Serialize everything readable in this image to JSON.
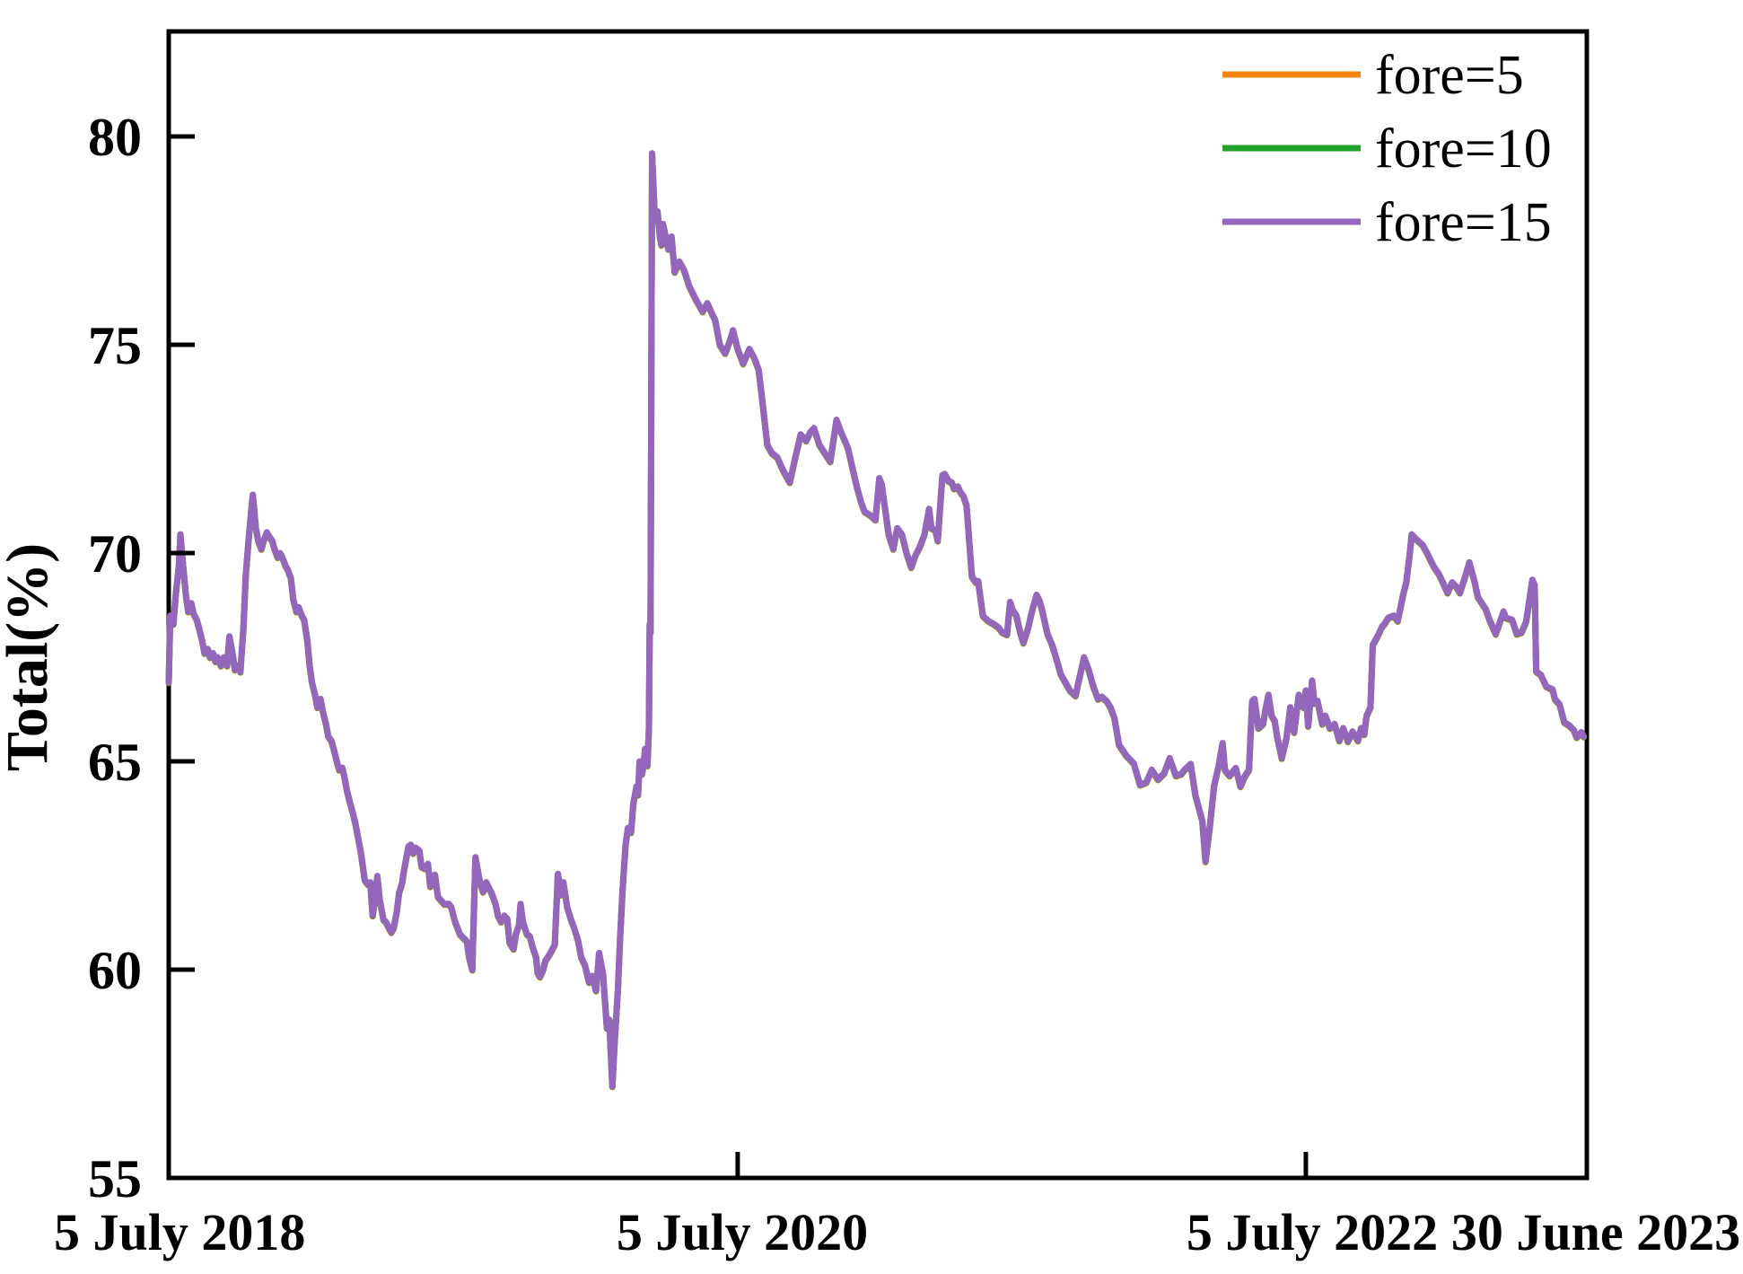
{
  "axes": {
    "y_title": "Total(%)",
    "y_tick_labels": [
      "55",
      "60",
      "65",
      "70",
      "75",
      "80"
    ],
    "x_ticks": [
      {
        "label": "5 July 2018",
        "day": 0,
        "tick_mark": false,
        "anchor": "start"
      },
      {
        "label": "5 July 2020",
        "day": 731,
        "tick_mark": true,
        "anchor": "middle"
      },
      {
        "label": "5 July 2022",
        "day": 1461,
        "tick_mark": true,
        "anchor": "middle"
      },
      {
        "label": "30 June 2023",
        "day": 1822,
        "tick_mark": false,
        "anchor": "middle"
      }
    ]
  },
  "legend": {
    "entries": [
      {
        "label": "fore=5",
        "color": "#f5820b"
      },
      {
        "label": "fore=10",
        "color": "#21a32b"
      },
      {
        "label": "fore=15",
        "color": "#9467bd"
      }
    ]
  },
  "chart_data": {
    "type": "line",
    "title": "",
    "xlabel": "",
    "ylabel": "Total(%)",
    "ylim": [
      55,
      80
    ],
    "xlim": [
      0,
      1822
    ],
    "x_unit": "days since 5 July 2018",
    "grid": false,
    "legend_position": "upper right, no frame",
    "y_ticks": [
      55,
      60,
      65,
      70,
      75,
      80
    ],
    "x_tick_labels": [
      "5 July 2018",
      "5 July 2020",
      "5 July 2022",
      "30 June 2023"
    ],
    "series": [
      {
        "name": "fore=5",
        "color": "#f5820b"
      },
      {
        "name": "fore=10",
        "color": "#21a32b"
      },
      {
        "name": "fore=15",
        "color": "#9467bd"
      }
    ],
    "note": "The three series overlap almost exactly; fore=15 is drawn on top so only the purple curve is visible (tiny orange slivers at sharp corners). All series share the points array below: [day, total_percent].",
    "points": [
      [
        0,
        66.9
      ],
      [
        2,
        68.5
      ],
      [
        6,
        68.3
      ],
      [
        9,
        69.0
      ],
      [
        13,
        69.7
      ],
      [
        15,
        70.45
      ],
      [
        18,
        69.8
      ],
      [
        22,
        69.0
      ],
      [
        25,
        68.6
      ],
      [
        29,
        68.8
      ],
      [
        32,
        68.55
      ],
      [
        36,
        68.4
      ],
      [
        39,
        68.2
      ],
      [
        43,
        67.9
      ],
      [
        46,
        67.6
      ],
      [
        50,
        67.7
      ],
      [
        53,
        67.5
      ],
      [
        57,
        67.6
      ],
      [
        60,
        67.4
      ],
      [
        63,
        67.5
      ],
      [
        67,
        67.3
      ],
      [
        71,
        67.5
      ],
      [
        75,
        67.3
      ],
      [
        78,
        68.0
      ],
      [
        82,
        67.6
      ],
      [
        85,
        67.2
      ],
      [
        89,
        67.3
      ],
      [
        92,
        67.15
      ],
      [
        96,
        68.2
      ],
      [
        99,
        69.5
      ],
      [
        103,
        70.4
      ],
      [
        106,
        71.0
      ],
      [
        108,
        71.4
      ],
      [
        112,
        70.6
      ],
      [
        115,
        70.3
      ],
      [
        119,
        70.1
      ],
      [
        122,
        70.3
      ],
      [
        126,
        70.5
      ],
      [
        129,
        70.4
      ],
      [
        133,
        70.3
      ],
      [
        136,
        70.1
      ],
      [
        140,
        69.9
      ],
      [
        143,
        70.0
      ],
      [
        146,
        69.9
      ],
      [
        150,
        69.7
      ],
      [
        153,
        69.6
      ],
      [
        157,
        69.4
      ],
      [
        160,
        68.9
      ],
      [
        164,
        68.6
      ],
      [
        167,
        68.7
      ],
      [
        171,
        68.5
      ],
      [
        174,
        68.4
      ],
      [
        178,
        67.9
      ],
      [
        181,
        67.3
      ],
      [
        184,
        66.9
      ],
      [
        188,
        66.6
      ],
      [
        191,
        66.3
      ],
      [
        195,
        66.5
      ],
      [
        198,
        66.2
      ],
      [
        202,
        65.9
      ],
      [
        205,
        65.6
      ],
      [
        209,
        65.5
      ],
      [
        212,
        65.3
      ],
      [
        216,
        65.0
      ],
      [
        219,
        64.8
      ],
      [
        223,
        64.85
      ],
      [
        226,
        64.6
      ],
      [
        229,
        64.3
      ],
      [
        233,
        64.0
      ],
      [
        236,
        63.8
      ],
      [
        240,
        63.5
      ],
      [
        243,
        63.2
      ],
      [
        247,
        62.8
      ],
      [
        250,
        62.4
      ],
      [
        252,
        62.15
      ],
      [
        256,
        62.05
      ],
      [
        259,
        62.1
      ],
      [
        262,
        61.3
      ],
      [
        265,
        61.7
      ],
      [
        268,
        62.25
      ],
      [
        271,
        61.7
      ],
      [
        276,
        61.2
      ],
      [
        279,
        61.15
      ],
      [
        283,
        61.0
      ],
      [
        286,
        60.9
      ],
      [
        289,
        61.0
      ],
      [
        293,
        61.4
      ],
      [
        296,
        61.85
      ],
      [
        300,
        62.1
      ],
      [
        302,
        62.36
      ],
      [
        308,
        62.96
      ],
      [
        311,
        63.0
      ],
      [
        314,
        62.8
      ],
      [
        317,
        62.93
      ],
      [
        322,
        62.86
      ],
      [
        325,
        62.47
      ],
      [
        329,
        62.43
      ],
      [
        333,
        62.54
      ],
      [
        336,
        62.0
      ],
      [
        339,
        62.17
      ],
      [
        342,
        62.28
      ],
      [
        346,
        61.75
      ],
      [
        351,
        61.64
      ],
      [
        354,
        61.58
      ],
      [
        360,
        61.58
      ],
      [
        363,
        61.5
      ],
      [
        368,
        61.15
      ],
      [
        374,
        60.86
      ],
      [
        377,
        60.8
      ],
      [
        383,
        60.68
      ],
      [
        386,
        60.3
      ],
      [
        390,
        60.0
      ],
      [
        394,
        62.7
      ],
      [
        398,
        62.3
      ],
      [
        400,
        62.1
      ],
      [
        404,
        61.87
      ],
      [
        408,
        62.1
      ],
      [
        412,
        61.94
      ],
      [
        415,
        61.83
      ],
      [
        420,
        61.58
      ],
      [
        423,
        61.3
      ],
      [
        427,
        61.15
      ],
      [
        431,
        61.3
      ],
      [
        435,
        61.22
      ],
      [
        438,
        60.65
      ],
      [
        443,
        60.5
      ],
      [
        446,
        60.86
      ],
      [
        450,
        61.07
      ],
      [
        452,
        61.58
      ],
      [
        455,
        61.15
      ],
      [
        460,
        60.86
      ],
      [
        464,
        60.8
      ],
      [
        467,
        60.58
      ],
      [
        472,
        60.3
      ],
      [
        474,
        59.93
      ],
      [
        477,
        59.83
      ],
      [
        481,
        60.0
      ],
      [
        484,
        60.22
      ],
      [
        489,
        60.36
      ],
      [
        496,
        60.6
      ],
      [
        500,
        62.3
      ],
      [
        504,
        61.8
      ],
      [
        507,
        62.1
      ],
      [
        512,
        61.5
      ],
      [
        517,
        61.2
      ],
      [
        521,
        61.0
      ],
      [
        526,
        60.7
      ],
      [
        530,
        60.3
      ],
      [
        535,
        60.1
      ],
      [
        540,
        59.7
      ],
      [
        544,
        59.85
      ],
      [
        549,
        59.5
      ],
      [
        553,
        60.4
      ],
      [
        558,
        59.9
      ],
      [
        563,
        58.6
      ],
      [
        566,
        58.8
      ],
      [
        570,
        57.2
      ],
      [
        573,
        58.3
      ],
      [
        577,
        59.5
      ],
      [
        580,
        60.8
      ],
      [
        583,
        61.9
      ],
      [
        587,
        63.0
      ],
      [
        590,
        63.4
      ],
      [
        594,
        63.3
      ],
      [
        597,
        64.0
      ],
      [
        601,
        64.4
      ],
      [
        603,
        64.2
      ],
      [
        605,
        65.0
      ],
      [
        608,
        64.7
      ],
      [
        610,
        64.9
      ],
      [
        612,
        65.3
      ],
      [
        615,
        64.9
      ],
      [
        617,
        65.8
      ],
      [
        618,
        68.3
      ],
      [
        619,
        68.1
      ],
      [
        620,
        74.0
      ],
      [
        621,
        79.6
      ],
      [
        624,
        78.3
      ],
      [
        626,
        78.0
      ],
      [
        628,
        78.2
      ],
      [
        631,
        77.6
      ],
      [
        633,
        77.4
      ],
      [
        635,
        77.9
      ],
      [
        642,
        77.3
      ],
      [
        646,
        77.6
      ],
      [
        650,
        76.75
      ],
      [
        656,
        77.0
      ],
      [
        662,
        76.8
      ],
      [
        669,
        76.4
      ],
      [
        677,
        76.1
      ],
      [
        686,
        75.8
      ],
      [
        692,
        76.0
      ],
      [
        698,
        75.75
      ],
      [
        702,
        75.6
      ],
      [
        708,
        75.0
      ],
      [
        715,
        74.8
      ],
      [
        721,
        75.1
      ],
      [
        725,
        75.35
      ],
      [
        731,
        74.9
      ],
      [
        738,
        74.55
      ],
      [
        746,
        74.9
      ],
      [
        752,
        74.7
      ],
      [
        758,
        74.4
      ],
      [
        763,
        73.6
      ],
      [
        769,
        72.6
      ],
      [
        775,
        72.4
      ],
      [
        782,
        72.3
      ],
      [
        789,
        72.0
      ],
      [
        798,
        71.7
      ],
      [
        805,
        72.3
      ],
      [
        812,
        72.85
      ],
      [
        819,
        72.7
      ],
      [
        824,
        72.9
      ],
      [
        829,
        73.0
      ],
      [
        836,
        72.6
      ],
      [
        843,
        72.4
      ],
      [
        850,
        72.2
      ],
      [
        858,
        73.2
      ],
      [
        864,
        72.9
      ],
      [
        871,
        72.6
      ],
      [
        873,
        72.5
      ],
      [
        879,
        72.0
      ],
      [
        884,
        71.6
      ],
      [
        890,
        71.2
      ],
      [
        894,
        71.0
      ],
      [
        902,
        70.9
      ],
      [
        908,
        70.8
      ],
      [
        913,
        71.8
      ],
      [
        916,
        71.66
      ],
      [
        925,
        70.45
      ],
      [
        931,
        70.1
      ],
      [
        936,
        70.6
      ],
      [
        942,
        70.45
      ],
      [
        948,
        70.0
      ],
      [
        954,
        69.66
      ],
      [
        959,
        69.93
      ],
      [
        965,
        70.15
      ],
      [
        971,
        70.45
      ],
      [
        977,
        71.06
      ],
      [
        980,
        70.6
      ],
      [
        985,
        70.55
      ],
      [
        988,
        70.3
      ],
      [
        994,
        71.87
      ],
      [
        997,
        71.9
      ],
      [
        1002,
        71.73
      ],
      [
        1006,
        71.7
      ],
      [
        1009,
        71.55
      ],
      [
        1014,
        71.6
      ],
      [
        1017,
        71.47
      ],
      [
        1021,
        71.37
      ],
      [
        1025,
        71.15
      ],
      [
        1032,
        69.44
      ],
      [
        1037,
        69.3
      ],
      [
        1040,
        69.33
      ],
      [
        1046,
        68.5
      ],
      [
        1049,
        68.44
      ],
      [
        1054,
        68.36
      ],
      [
        1060,
        68.3
      ],
      [
        1066,
        68.22
      ],
      [
        1071,
        68.1
      ],
      [
        1077,
        68.05
      ],
      [
        1081,
        68.83
      ],
      [
        1084,
        68.65
      ],
      [
        1089,
        68.5
      ],
      [
        1094,
        68.1
      ],
      [
        1098,
        67.85
      ],
      [
        1104,
        68.2
      ],
      [
        1109,
        68.6
      ],
      [
        1115,
        69.0
      ],
      [
        1119,
        68.85
      ],
      [
        1123,
        68.57
      ],
      [
        1129,
        68.07
      ],
      [
        1135,
        67.8
      ],
      [
        1140,
        67.5
      ],
      [
        1146,
        67.1
      ],
      [
        1152,
        66.9
      ],
      [
        1158,
        66.7
      ],
      [
        1165,
        66.58
      ],
      [
        1170,
        67.0
      ],
      [
        1176,
        67.5
      ],
      [
        1182,
        67.2
      ],
      [
        1188,
        66.8
      ],
      [
        1194,
        66.5
      ],
      [
        1199,
        66.55
      ],
      [
        1205,
        66.45
      ],
      [
        1210,
        66.3
      ],
      [
        1215,
        66.05
      ],
      [
        1221,
        65.4
      ],
      [
        1230,
        65.15
      ],
      [
        1240,
        64.95
      ],
      [
        1248,
        64.44
      ],
      [
        1256,
        64.5
      ],
      [
        1263,
        64.8
      ],
      [
        1271,
        64.57
      ],
      [
        1279,
        64.72
      ],
      [
        1286,
        65.08
      ],
      [
        1294,
        64.66
      ],
      [
        1301,
        64.7
      ],
      [
        1305,
        64.8
      ],
      [
        1313,
        64.94
      ],
      [
        1319,
        64.2
      ],
      [
        1328,
        63.58
      ],
      [
        1332,
        62.6
      ],
      [
        1338,
        63.5
      ],
      [
        1343,
        64.4
      ],
      [
        1349,
        64.9
      ],
      [
        1354,
        65.44
      ],
      [
        1357,
        64.8
      ],
      [
        1363,
        64.66
      ],
      [
        1371,
        64.84
      ],
      [
        1377,
        64.4
      ],
      [
        1383,
        64.66
      ],
      [
        1388,
        64.8
      ],
      [
        1392,
        66.45
      ],
      [
        1395,
        66.5
      ],
      [
        1400,
        65.8
      ],
      [
        1406,
        65.9
      ],
      [
        1409,
        66.24
      ],
      [
        1413,
        66.6
      ],
      [
        1417,
        66.1
      ],
      [
        1421,
        65.97
      ],
      [
        1424,
        65.6
      ],
      [
        1430,
        65.08
      ],
      [
        1436,
        65.56
      ],
      [
        1441,
        66.3
      ],
      [
        1446,
        65.7
      ],
      [
        1452,
        66.6
      ],
      [
        1458,
        66.3
      ],
      [
        1461,
        66.7
      ],
      [
        1464,
        65.85
      ],
      [
        1469,
        66.94
      ],
      [
        1472,
        66.4
      ],
      [
        1476,
        66.45
      ],
      [
        1482,
        65.9
      ],
      [
        1486,
        66.1
      ],
      [
        1492,
        65.8
      ],
      [
        1498,
        65.9
      ],
      [
        1504,
        65.5
      ],
      [
        1509,
        65.8
      ],
      [
        1515,
        65.48
      ],
      [
        1521,
        65.72
      ],
      [
        1528,
        65.5
      ],
      [
        1532,
        65.8
      ],
      [
        1536,
        65.65
      ],
      [
        1539,
        66.1
      ],
      [
        1544,
        66.3
      ],
      [
        1547,
        67.8
      ],
      [
        1553,
        68.0
      ],
      [
        1559,
        68.24
      ],
      [
        1562,
        68.3
      ],
      [
        1567,
        68.45
      ],
      [
        1574,
        68.5
      ],
      [
        1579,
        68.37
      ],
      [
        1586,
        69.0
      ],
      [
        1590,
        69.3
      ],
      [
        1594,
        69.9
      ],
      [
        1597,
        70.45
      ],
      [
        1602,
        70.35
      ],
      [
        1605,
        70.3
      ],
      [
        1611,
        70.2
      ],
      [
        1617,
        70.0
      ],
      [
        1622,
        69.8
      ],
      [
        1626,
        69.66
      ],
      [
        1632,
        69.5
      ],
      [
        1637,
        69.3
      ],
      [
        1643,
        69.05
      ],
      [
        1649,
        69.3
      ],
      [
        1654,
        69.2
      ],
      [
        1659,
        69.05
      ],
      [
        1665,
        69.4
      ],
      [
        1671,
        69.78
      ],
      [
        1678,
        69.3
      ],
      [
        1682,
        68.95
      ],
      [
        1692,
        68.66
      ],
      [
        1697,
        68.4
      ],
      [
        1705,
        68.06
      ],
      [
        1715,
        68.6
      ],
      [
        1718,
        68.45
      ],
      [
        1726,
        68.4
      ],
      [
        1732,
        68.06
      ],
      [
        1738,
        68.1
      ],
      [
        1744,
        68.36
      ],
      [
        1752,
        69.36
      ],
      [
        1755,
        69.23
      ],
      [
        1757,
        67.16
      ],
      [
        1763,
        67.08
      ],
      [
        1770,
        66.8
      ],
      [
        1778,
        66.73
      ],
      [
        1781,
        66.5
      ],
      [
        1787,
        66.37
      ],
      [
        1793,
        65.94
      ],
      [
        1799,
        65.87
      ],
      [
        1805,
        65.76
      ],
      [
        1809,
        65.58
      ],
      [
        1815,
        65.7
      ],
      [
        1818,
        65.6
      ]
    ]
  }
}
